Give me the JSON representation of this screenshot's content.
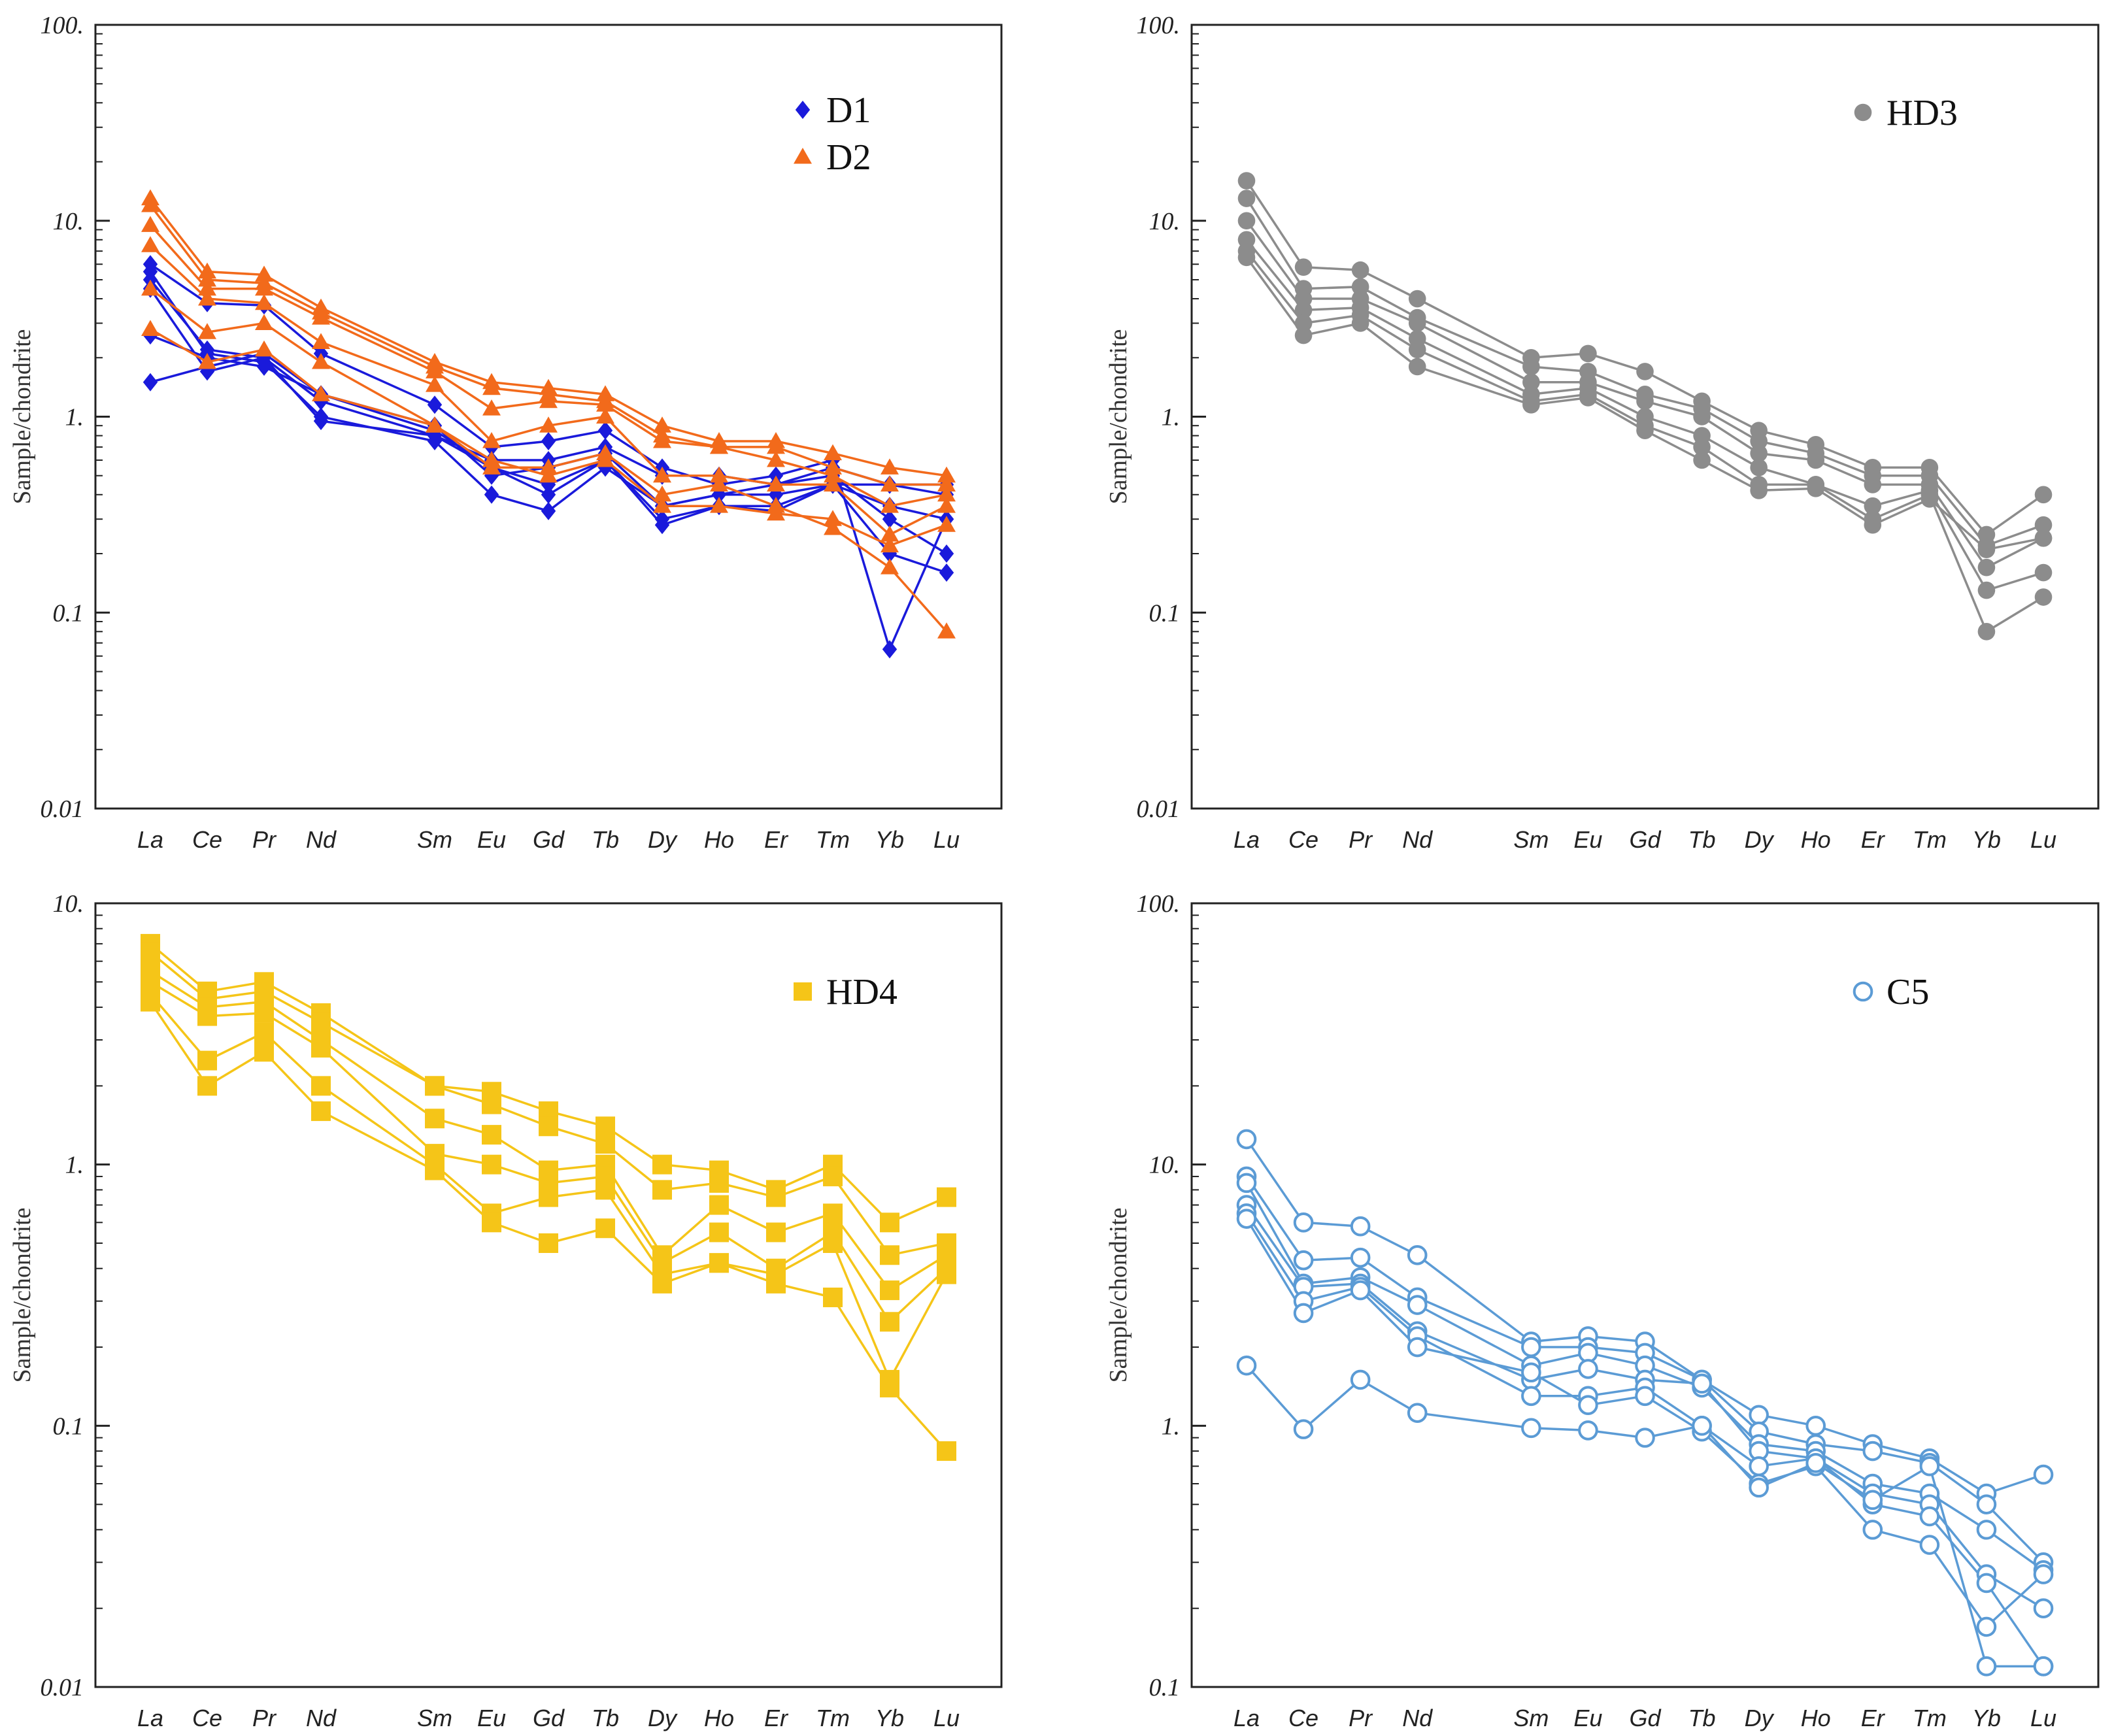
{
  "figure": {
    "elements": [
      "La",
      "Ce",
      "Pr",
      "Nd",
      "Sm",
      "Eu",
      "Gd",
      "Tb",
      "Dy",
      "Ho",
      "Er",
      "Tm",
      "Yb",
      "Lu"
    ],
    "element_positions": [
      0,
      1,
      2,
      3,
      5,
      6,
      7,
      8,
      9,
      10,
      11,
      12,
      13,
      14
    ]
  },
  "chart_data": [
    {
      "type": "line",
      "id": "d1d2",
      "ylabel": "Sample/chondrite",
      "yscale": "log",
      "ylim": [
        0.01,
        100
      ],
      "yticks": [
        {
          "v": 100,
          "label": "100."
        },
        {
          "v": 10,
          "label": "10."
        },
        {
          "v": 1,
          "label": "1."
        },
        {
          "v": 0.1,
          "label": "0.1"
        },
        {
          "v": 0.01,
          "label": "0.01"
        }
      ],
      "legend": [
        {
          "label": "D1",
          "marker": "diamond",
          "color": "#1a1adb"
        },
        {
          "label": "D2",
          "marker": "triangle",
          "color": "#f26a1b"
        }
      ],
      "groups": [
        {
          "name": "D1",
          "marker": "diamond",
          "color": "#1a1adb",
          "series": [
            [
              1.5,
              1.8,
              2.1,
              1.3,
              0.85,
              0.55,
              0.45,
              0.6,
              0.3,
              0.35,
              0.35,
              0.45,
              0.45,
              0.4
            ],
            [
              5.0,
              2.2,
              2.0,
              1.2,
              0.8,
              0.6,
              0.6,
              0.7,
              0.5,
              0.5,
              0.45,
              0.55,
              0.45,
              0.45
            ],
            [
              5.5,
              2.1,
              1.9,
              1.0,
              0.75,
              0.4,
              0.33,
              0.55,
              0.35,
              0.4,
              0.45,
              0.5,
              0.3,
              0.2
            ],
            [
              6.0,
              3.8,
              3.7,
              2.1,
              1.15,
              0.7,
              0.75,
              0.85,
              0.55,
              0.45,
              0.5,
              0.6,
              0.065,
              0.3
            ],
            [
              4.5,
              1.7,
              2.0,
              0.95,
              0.8,
              0.55,
              0.4,
              0.6,
              0.28,
              0.35,
              0.33,
              0.45,
              0.2,
              0.16
            ],
            [
              2.6,
              2.0,
              1.8,
              1.3,
              0.9,
              0.5,
              0.55,
              0.65,
              0.35,
              0.4,
              0.4,
              0.45,
              0.35,
              0.3
            ]
          ]
        },
        {
          "name": "D2",
          "marker": "triangle",
          "color": "#f26a1b",
          "series": [
            [
              13.0,
              5.5,
              5.3,
              3.6,
              1.9,
              1.5,
              1.4,
              1.3,
              0.9,
              0.75,
              0.75,
              0.65,
              0.55,
              0.5
            ],
            [
              12.0,
              5.0,
              4.8,
              3.4,
              1.8,
              1.4,
              1.3,
              1.2,
              0.8,
              0.7,
              0.7,
              0.55,
              0.45,
              0.45
            ],
            [
              9.5,
              4.5,
              4.5,
              3.2,
              1.7,
              1.1,
              1.2,
              1.15,
              0.75,
              0.7,
              0.6,
              0.5,
              0.35,
              0.4
            ],
            [
              7.5,
              4.0,
              3.8,
              2.4,
              1.45,
              0.75,
              0.9,
              1.0,
              0.5,
              0.5,
              0.45,
              0.45,
              0.25,
              0.35
            ],
            [
              4.5,
              2.7,
              3.0,
              1.9,
              0.9,
              0.55,
              0.55,
              0.65,
              0.4,
              0.45,
              0.35,
              0.27,
              0.17,
              0.08
            ],
            [
              2.8,
              1.9,
              2.2,
              1.3,
              0.9,
              0.6,
              0.5,
              0.6,
              0.35,
              0.35,
              0.32,
              0.3,
              0.22,
              0.28
            ]
          ]
        }
      ]
    },
    {
      "type": "line",
      "id": "hd3",
      "ylabel": "Sample/chondrite",
      "yscale": "log",
      "ylim": [
        0.01,
        100
      ],
      "yticks": [
        {
          "v": 100,
          "label": "100."
        },
        {
          "v": 10,
          "label": "10."
        },
        {
          "v": 1,
          "label": "1."
        },
        {
          "v": 0.1,
          "label": "0.1"
        },
        {
          "v": 0.01,
          "label": "0.01"
        }
      ],
      "legend": [
        {
          "label": "HD3",
          "marker": "circle",
          "color": "#8c8c8c"
        }
      ],
      "groups": [
        {
          "name": "HD3",
          "marker": "circle",
          "color": "#8c8c8c",
          "series": [
            [
              16.0,
              5.8,
              5.6,
              4.0,
              2.0,
              2.1,
              1.7,
              1.2,
              0.85,
              0.72,
              0.55,
              0.55,
              0.25,
              0.4
            ],
            [
              13.0,
              4.5,
              4.6,
              3.2,
              1.8,
              1.7,
              1.3,
              1.1,
              0.75,
              0.65,
              0.5,
              0.5,
              0.22,
              0.28
            ],
            [
              10.0,
              4.0,
              4.0,
              3.0,
              1.5,
              1.5,
              1.2,
              1.0,
              0.65,
              0.6,
              0.45,
              0.45,
              0.17,
              0.24
            ],
            [
              8.0,
              3.5,
              3.6,
              2.5,
              1.3,
              1.4,
              1.0,
              0.8,
              0.55,
              0.45,
              0.35,
              0.42,
              0.13,
              0.16
            ],
            [
              7.0,
              3.0,
              3.3,
              2.2,
              1.2,
              1.3,
              0.9,
              0.7,
              0.45,
              0.45,
              0.3,
              0.4,
              0.08,
              0.12
            ],
            [
              6.5,
              2.6,
              3.0,
              1.8,
              1.15,
              1.25,
              0.85,
              0.6,
              0.42,
              0.43,
              0.28,
              0.38,
              0.21,
              0.24
            ]
          ]
        }
      ]
    },
    {
      "type": "line",
      "id": "hd4",
      "ylabel": "Sample/chondrite",
      "yscale": "log",
      "ylim": [
        0.01,
        10
      ],
      "yticks": [
        {
          "v": 10,
          "label": "10."
        },
        {
          "v": 1,
          "label": "1."
        },
        {
          "v": 0.1,
          "label": "0.1"
        },
        {
          "v": 0.01,
          "label": "0.01"
        }
      ],
      "legend": [
        {
          "label": "HD4",
          "marker": "square",
          "color": "#f5c518"
        }
      ],
      "groups": [
        {
          "name": "HD4",
          "marker": "square",
          "color": "#f5c518",
          "series": [
            [
              7.0,
              4.6,
              5.0,
              3.8,
              2.0,
              1.9,
              1.6,
              1.4,
              1.0,
              0.95,
              0.8,
              1.0,
              0.6,
              0.75
            ],
            [
              6.5,
              4.3,
              4.6,
              3.5,
              2.0,
              1.7,
              1.4,
              1.2,
              0.8,
              0.85,
              0.75,
              0.9,
              0.45,
              0.5
            ],
            [
              5.5,
              4.0,
              4.2,
              3.0,
              1.5,
              1.3,
              0.95,
              1.0,
              0.45,
              0.7,
              0.55,
              0.65,
              0.33,
              0.45
            ],
            [
              5.0,
              3.7,
              3.8,
              2.8,
              1.1,
              1.0,
              0.85,
              0.9,
              0.42,
              0.55,
              0.4,
              0.55,
              0.25,
              0.4
            ],
            [
              4.5,
              2.5,
              3.2,
              2.0,
              1.0,
              0.65,
              0.75,
              0.8,
              0.38,
              0.42,
              0.38,
              0.5,
              0.15,
              0.38
            ],
            [
              4.2,
              2.0,
              2.7,
              1.6,
              0.95,
              0.6,
              0.5,
              0.57,
              0.35,
              0.42,
              0.35,
              0.31,
              0.14,
              0.08
            ]
          ]
        }
      ]
    },
    {
      "type": "line",
      "id": "c5",
      "ylabel": "Sample/chondrite",
      "yscale": "log",
      "ylim": [
        0.1,
        100
      ],
      "yticks": [
        {
          "v": 100,
          "label": "100."
        },
        {
          "v": 10,
          "label": "10."
        },
        {
          "v": 1,
          "label": "1."
        },
        {
          "v": 0.1,
          "label": "0.1"
        }
      ],
      "legend": [
        {
          "label": "C5",
          "marker": "open-circle",
          "color": "#5b9bd5"
        }
      ],
      "groups": [
        {
          "name": "C5",
          "marker": "open-circle",
          "color": "#5b9bd5",
          "series": [
            [
              12.5,
              6.0,
              5.8,
              4.5,
              2.1,
              2.2,
              2.1,
              1.5,
              1.1,
              1.0,
              0.85,
              0.75,
              0.55,
              0.65
            ],
            [
              9.0,
              4.3,
              4.4,
              3.1,
              2.0,
              2.0,
              1.9,
              1.5,
              0.95,
              0.85,
              0.8,
              0.72,
              0.5,
              0.3
            ],
            [
              8.5,
              3.5,
              3.7,
              2.9,
              1.7,
              1.9,
              1.7,
              1.4,
              0.85,
              0.8,
              0.6,
              0.55,
              0.4,
              0.28
            ],
            [
              7.0,
              3.4,
              3.5,
              2.3,
              1.5,
              1.65,
              1.5,
              1.45,
              0.8,
              0.75,
              0.55,
              0.5,
              0.27,
              0.2
            ],
            [
              6.5,
              3.0,
              3.4,
              2.2,
              1.3,
              1.3,
              1.4,
              1.0,
              0.7,
              0.75,
              0.5,
              0.45,
              0.25,
              0.12
            ],
            [
              6.2,
              2.7,
              3.3,
              2.0,
              1.6,
              1.2,
              1.3,
              0.95,
              0.6,
              0.7,
              0.4,
              0.35,
              0.17,
              0.27
            ],
            [
              1.7,
              0.97,
              1.5,
              1.12,
              0.98,
              0.96,
              0.9,
              1.0,
              0.58,
              0.72,
              0.52,
              0.7,
              0.12,
              0.12
            ]
          ]
        }
      ]
    }
  ]
}
